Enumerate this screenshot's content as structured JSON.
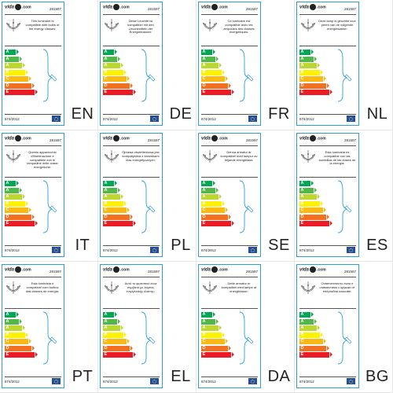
{
  "brand": {
    "logo_text": "vida",
    "logo_suffix": ".com"
  },
  "product_code": "281597",
  "regulation": "874/2012",
  "classes": [
    {
      "letter": "A",
      "sup": "++",
      "color": "#00a651"
    },
    {
      "letter": "A",
      "sup": "+",
      "color": "#50b848"
    },
    {
      "letter": "A",
      "sup": "",
      "color": "#bed630"
    },
    {
      "letter": "B",
      "sup": "",
      "color": "#fff200"
    },
    {
      "letter": "C",
      "sup": "",
      "color": "#fdb913"
    },
    {
      "letter": "D",
      "sup": "",
      "color": "#f37021"
    },
    {
      "letter": "E",
      "sup": "",
      "color": "#ed1c24"
    }
  ],
  "labels": [
    {
      "lang": "EN",
      "text": "This luminaire is compatible with bulbs of the energy classes:"
    },
    {
      "lang": "DE",
      "text": "Diese Leuchte ist kompatibel mit den Leuchtmitteln der Energieklassen:"
    },
    {
      "lang": "FR",
      "text": "Ce luminaire est compatible avec les ampoules des classes énergétiques:"
    },
    {
      "lang": "NL",
      "text": "Deze lamp is geschikt voor peren van de volgende energieklasse:"
    },
    {
      "lang": "IT",
      "text": "Questo apparecchio d'illuminazione è compatibile con le lampadine delle classi energetiche:"
    },
    {
      "lang": "PL",
      "text": "Oprawa oświetleniowa jest kompatybilna z żarówkami klas energetycznych:"
    },
    {
      "lang": "SE",
      "text": "Denna armatur är kompatibel med lampor av följande energiklass:"
    },
    {
      "lang": "ES",
      "text": "Esta luminaria es compatible con las bombillas de las clases de la energía:"
    },
    {
      "lang": "PT",
      "text": "Esta luminária é compatível com bulbos das classes de energia:"
    },
    {
      "lang": "EL",
      "text": "Αυτό το φωτιστικό είναι συμβατό με λάμπες ενεργειακής κλάσης:"
    },
    {
      "lang": "DA",
      "text": "Dette armatur er kompatibel med lampe af energiklasse:"
    },
    {
      "lang": "BG",
      "text": "Осветителното тяло е съвместимо с крушки от енергийни класове:"
    }
  ]
}
